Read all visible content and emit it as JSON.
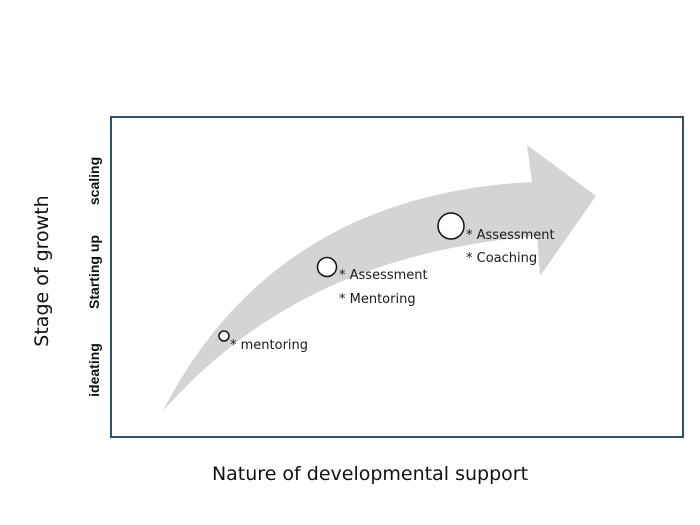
{
  "diagram": {
    "y_axis_title": "Stage of growth",
    "x_axis_title": "Nature of developmental support",
    "stages": [
      "ideating",
      "Starting up",
      "scaling"
    ],
    "nodes": [
      {
        "lines": [
          "* mentoring"
        ]
      },
      {
        "lines": [
          "* Assessment",
          "* Mentoring"
        ]
      },
      {
        "lines": [
          "* Assessment",
          "* Coaching"
        ]
      }
    ],
    "colors": {
      "frame": "#2f4f6f",
      "arrow": "#d4d4d4",
      "circle_stroke": "#111111",
      "circle_fill": "#ffffff"
    }
  }
}
